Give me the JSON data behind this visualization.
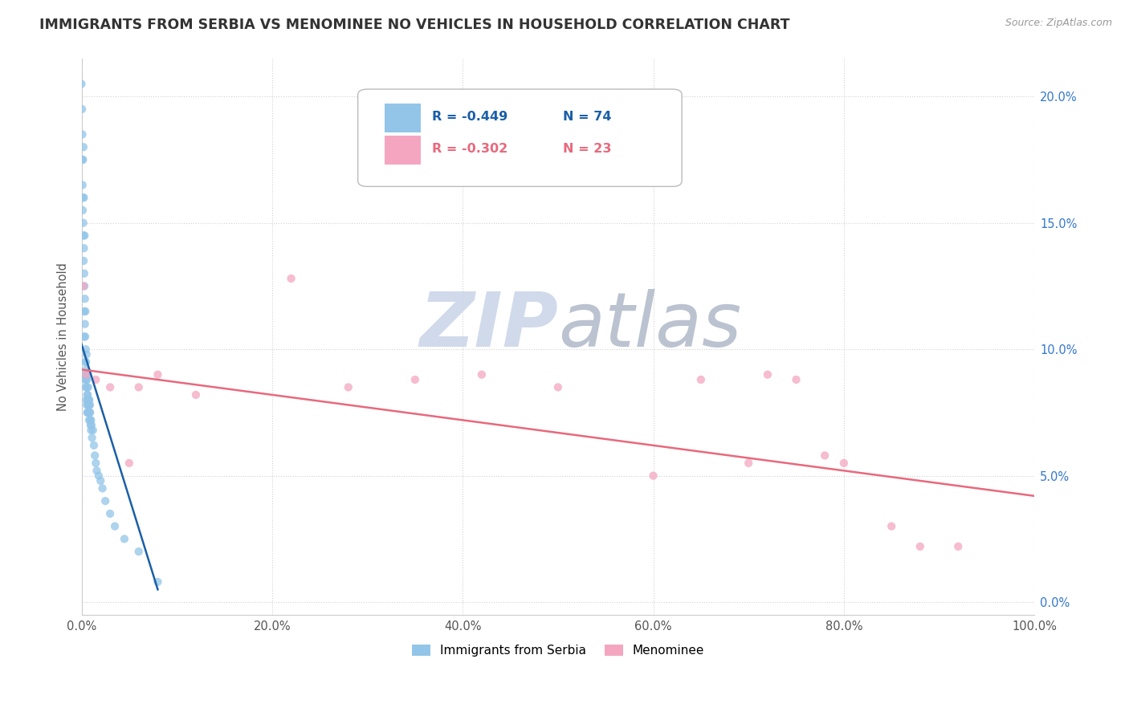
{
  "title": "IMMIGRANTS FROM SERBIA VS MENOMINEE NO VEHICLES IN HOUSEHOLD CORRELATION CHART",
  "source": "Source: ZipAtlas.com",
  "ylabel": "No Vehicles in Household",
  "xlim": [
    0.0,
    100.0
  ],
  "ylim": [
    -0.5,
    21.5
  ],
  "x_ticks": [
    0.0,
    20.0,
    40.0,
    60.0,
    80.0,
    100.0
  ],
  "x_tick_labels": [
    "0.0%",
    "20.0%",
    "40.0%",
    "60.0%",
    "80.0%",
    "100.0%"
  ],
  "y_ticks": [
    0.0,
    5.0,
    10.0,
    15.0,
    20.0
  ],
  "y_tick_labels": [
    "0.0%",
    "5.0%",
    "10.0%",
    "15.0%",
    "20.0%"
  ],
  "legend_blue_r": "R = -0.449",
  "legend_blue_n": "N = 74",
  "legend_pink_r": "R = -0.302",
  "legend_pink_n": "N = 23",
  "blue_color": "#92c5e8",
  "pink_color": "#f4a6c0",
  "blue_line_color": "#1a5fa8",
  "pink_line_color": "#e8697d",
  "watermark_zip": "ZIP",
  "watermark_atlas": "atlas",
  "watermark_zip_color": "#c8d4e8",
  "watermark_atlas_color": "#b0b8c8",
  "blue_scatter_x": [
    0.0,
    0.05,
    0.08,
    0.1,
    0.1,
    0.12,
    0.15,
    0.15,
    0.18,
    0.2,
    0.2,
    0.22,
    0.25,
    0.25,
    0.28,
    0.3,
    0.3,
    0.3,
    0.32,
    0.35,
    0.35,
    0.38,
    0.4,
    0.4,
    0.4,
    0.42,
    0.45,
    0.45,
    0.48,
    0.5,
    0.5,
    0.5,
    0.52,
    0.55,
    0.55,
    0.58,
    0.6,
    0.6,
    0.62,
    0.65,
    0.65,
    0.68,
    0.7,
    0.7,
    0.72,
    0.75,
    0.75,
    0.78,
    0.8,
    0.8,
    0.82,
    0.85,
    0.88,
    0.9,
    0.9,
    0.95,
    1.0,
    1.0,
    1.05,
    1.1,
    1.2,
    1.3,
    1.4,
    1.5,
    1.6,
    1.8,
    2.0,
    2.2,
    2.5,
    3.0,
    3.5,
    4.5,
    6.0,
    8.0
  ],
  "blue_scatter_y": [
    20.5,
    19.5,
    18.5,
    17.5,
    16.5,
    15.5,
    17.5,
    16.0,
    15.0,
    14.5,
    18.0,
    13.5,
    16.0,
    14.0,
    13.0,
    12.5,
    11.5,
    10.5,
    14.5,
    12.0,
    11.0,
    10.5,
    9.5,
    8.8,
    11.5,
    9.0,
    10.0,
    8.5,
    9.5,
    8.8,
    9.2,
    8.0,
    9.8,
    8.5,
    7.8,
    8.8,
    8.2,
    7.5,
    9.0,
    8.2,
    7.5,
    8.0,
    8.5,
    7.8,
    8.0,
    7.5,
    8.0,
    7.8,
    7.8,
    7.2,
    8.0,
    7.5,
    7.8,
    7.2,
    7.5,
    7.0,
    6.8,
    7.2,
    7.0,
    6.5,
    6.8,
    6.2,
    5.8,
    5.5,
    5.2,
    5.0,
    4.8,
    4.5,
    4.0,
    3.5,
    3.0,
    2.5,
    2.0,
    0.8
  ],
  "pink_scatter_x": [
    0.2,
    0.5,
    1.5,
    3.0,
    5.0,
    6.0,
    8.0,
    12.0,
    22.0,
    28.0,
    35.0,
    42.0,
    50.0,
    60.0,
    65.0,
    70.0,
    72.0,
    75.0,
    78.0,
    80.0,
    85.0,
    88.0,
    92.0
  ],
  "pink_scatter_y": [
    12.5,
    9.0,
    8.8,
    8.5,
    5.5,
    8.5,
    9.0,
    8.2,
    12.8,
    8.5,
    8.8,
    9.0,
    8.5,
    5.0,
    8.8,
    5.5,
    9.0,
    8.8,
    5.8,
    5.5,
    3.0,
    2.2,
    2.2
  ],
  "blue_trendline_x": [
    0.0,
    8.0
  ],
  "blue_trendline_y": [
    10.2,
    0.5
  ],
  "pink_trendline_x": [
    0.0,
    100.0
  ],
  "pink_trendline_y": [
    9.2,
    4.2
  ]
}
